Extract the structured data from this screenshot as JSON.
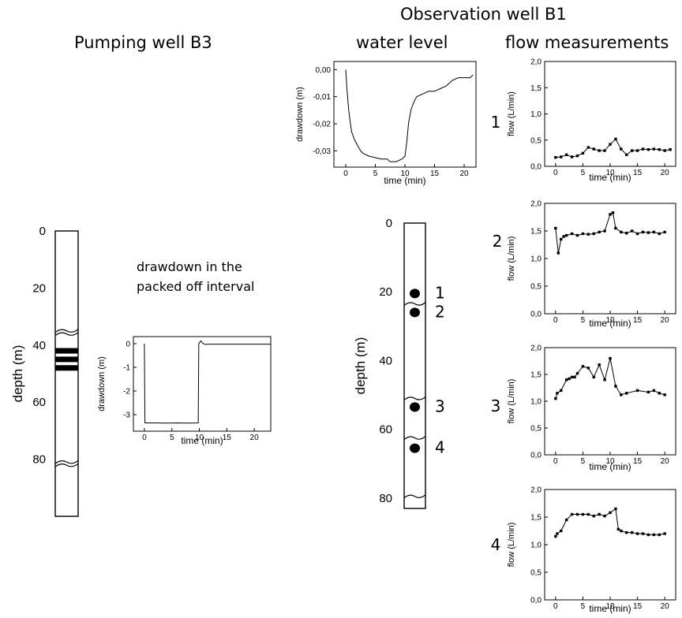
{
  "titles": {
    "pumping": "Pumping well B3",
    "observation": "Observation well B1",
    "water_level": "water level",
    "flow": "flow measurements",
    "packed_line1": "drawdown in the",
    "packed_line2": "packed off interval"
  },
  "wells": {
    "pumping": {
      "ylabel": "depth (m)",
      "depth_ticks": [
        "0",
        "20",
        "40",
        "60",
        "80"
      ],
      "depth_tick_values": [
        0,
        20,
        40,
        60,
        80
      ],
      "max_depth": 100,
      "fractures": [
        35,
        81
      ],
      "packers": [
        42,
        45,
        48
      ]
    },
    "observation": {
      "ylabel": "depth (m)",
      "depth_ticks": [
        "0",
        "20",
        "40",
        "60",
        "80"
      ],
      "depth_tick_values": [
        0,
        20,
        40,
        60,
        80
      ],
      "max_depth": 83,
      "fractures": [
        23.5,
        51,
        62.5,
        79.5
      ],
      "points": [
        {
          "label": "1",
          "depth": 20.5
        },
        {
          "label": "2",
          "depth": 26
        },
        {
          "label": "3",
          "depth": 53.5
        },
        {
          "label": "4",
          "depth": 65.5
        }
      ]
    }
  },
  "chart_data": [
    {
      "id": "obs_drawdown",
      "type": "line",
      "xlabel": "time (min)",
      "ylabel": "drawdown (m)",
      "xlim": [
        -2,
        22
      ],
      "ylim": [
        -0.036,
        0.003
      ],
      "xticks": [
        0,
        5,
        10,
        15,
        20
      ],
      "yticks": [
        0,
        -0.01,
        -0.02,
        -0.03
      ],
      "ytick_labels": [
        "0,00",
        "-0,01",
        "-0,02",
        "-0,03"
      ],
      "x": [
        0,
        0.2,
        0.5,
        0.8,
        1.0,
        1.5,
        2.0,
        2.5,
        3.0,
        4.0,
        5.0,
        6.0,
        7.0,
        7.5,
        8.0,
        8.5,
        9.0,
        9.5,
        10.0,
        10.3,
        10.6,
        11.0,
        11.5,
        12.0,
        13.0,
        14.0,
        15.0,
        16.0,
        17.0,
        18.0,
        19.0,
        20.0,
        21.0,
        21.5
      ],
      "y": [
        0,
        -0.007,
        -0.015,
        -0.02,
        -0.023,
        -0.026,
        -0.028,
        -0.03,
        -0.031,
        -0.032,
        -0.0325,
        -0.033,
        -0.033,
        -0.034,
        -0.034,
        -0.034,
        -0.0335,
        -0.033,
        -0.032,
        -0.027,
        -0.02,
        -0.015,
        -0.012,
        -0.01,
        -0.009,
        -0.008,
        -0.008,
        -0.007,
        -0.006,
        -0.004,
        -0.003,
        -0.003,
        -0.003,
        -0.002
      ]
    },
    {
      "id": "packed_drawdown",
      "type": "line",
      "xlabel": "time (min)",
      "ylabel": "drawdown (m)",
      "xlim": [
        -2,
        23
      ],
      "ylim": [
        -3.7,
        0.3
      ],
      "xticks": [
        0,
        5,
        10,
        15,
        20
      ],
      "yticks": [
        0,
        -1,
        -2,
        -3
      ],
      "ytick_labels": [
        "0",
        "-1",
        "-2",
        "-3"
      ],
      "x": [
        0,
        0.1,
        2,
        4,
        6,
        8,
        9.8,
        9.9,
        10.3,
        10.6,
        11.0,
        12,
        14,
        16,
        18,
        20,
        23
      ],
      "y": [
        0,
        -3.35,
        -3.35,
        -3.36,
        -3.35,
        -3.36,
        -3.35,
        0.0,
        0.12,
        0.02,
        -0.03,
        -0.02,
        -0.02,
        -0.02,
        -0.02,
        -0.02,
        -0.02
      ]
    },
    {
      "id": "flow_1",
      "panel_label": "1",
      "type": "line",
      "markers": true,
      "xlabel": "time (min)",
      "ylabel": "flow (L/min)",
      "xlim": [
        -2,
        22
      ],
      "ylim": [
        0,
        2
      ],
      "xticks": [
        0,
        5,
        10,
        15,
        20
      ],
      "yticks": [
        0,
        0.5,
        1,
        1.5,
        2
      ],
      "ytick_labels": [
        "0,0",
        "0,5",
        "1,0",
        "1,5",
        "2,0"
      ],
      "x": [
        0,
        1,
        2,
        3,
        4,
        5,
        6,
        7,
        8,
        9,
        10,
        11,
        12,
        13,
        14,
        15,
        16,
        17,
        18,
        19,
        20,
        21
      ],
      "y": [
        0.17,
        0.18,
        0.22,
        0.18,
        0.2,
        0.25,
        0.36,
        0.33,
        0.3,
        0.3,
        0.42,
        0.52,
        0.33,
        0.22,
        0.3,
        0.3,
        0.33,
        0.32,
        0.33,
        0.32,
        0.3,
        0.32
      ]
    },
    {
      "id": "flow_2",
      "panel_label": "2",
      "type": "line",
      "markers": true,
      "xlabel": "time (min)",
      "ylabel": "flow (L/min)",
      "xlim": [
        -2,
        22
      ],
      "ylim": [
        0,
        2
      ],
      "xticks": [
        0,
        5,
        10,
        15,
        20
      ],
      "yticks": [
        0,
        0.5,
        1,
        1.5,
        2
      ],
      "ytick_labels": [
        "0,0",
        "0,5",
        "1,0",
        "1,5",
        "2,0"
      ],
      "x": [
        0,
        0.5,
        1,
        1.5,
        2,
        3,
        4,
        5,
        6,
        7,
        8,
        9,
        10,
        10.5,
        11,
        12,
        13,
        14,
        15,
        16,
        17,
        18,
        19,
        20
      ],
      "y": [
        1.55,
        1.1,
        1.35,
        1.4,
        1.42,
        1.45,
        1.42,
        1.45,
        1.44,
        1.45,
        1.48,
        1.5,
        1.8,
        1.83,
        1.55,
        1.48,
        1.46,
        1.5,
        1.45,
        1.48,
        1.47,
        1.48,
        1.45,
        1.48
      ]
    },
    {
      "id": "flow_3",
      "panel_label": "3",
      "type": "line",
      "markers": true,
      "xlabel": "time (min)",
      "ylabel": "flow (L/min)",
      "xlim": [
        -2,
        22
      ],
      "ylim": [
        0,
        2
      ],
      "xticks": [
        0,
        5,
        10,
        15,
        20
      ],
      "yticks": [
        0,
        0.5,
        1,
        1.5,
        2
      ],
      "ytick_labels": [
        "0,0",
        "0,5",
        "1,0",
        "1,5",
        "2,0"
      ],
      "x": [
        0,
        0.3,
        1,
        2,
        2.5,
        3,
        3.5,
        4,
        5,
        6,
        7,
        8,
        9,
        10,
        11,
        12,
        13,
        15,
        17,
        18,
        19,
        20
      ],
      "y": [
        1.05,
        1.15,
        1.2,
        1.4,
        1.42,
        1.45,
        1.45,
        1.52,
        1.65,
        1.62,
        1.45,
        1.68,
        1.4,
        1.8,
        1.28,
        1.12,
        1.15,
        1.2,
        1.17,
        1.2,
        1.15,
        1.12
      ]
    },
    {
      "id": "flow_4",
      "panel_label": "4",
      "type": "line",
      "markers": true,
      "xlabel": "time (min)",
      "ylabel": "flow (L/min)",
      "xlim": [
        -2,
        22
      ],
      "ylim": [
        0,
        2
      ],
      "xticks": [
        0,
        5,
        10,
        15,
        20
      ],
      "yticks": [
        0,
        0.5,
        1,
        1.5,
        2
      ],
      "ytick_labels": [
        "0,0",
        "0,5",
        "1,0",
        "1,5",
        "2,0"
      ],
      "x": [
        0,
        0.3,
        1,
        2,
        3,
        4,
        5,
        6,
        7,
        8,
        9,
        10,
        11,
        11.5,
        12,
        13,
        14,
        15,
        16,
        17,
        18,
        19,
        20
      ],
      "y": [
        1.15,
        1.2,
        1.25,
        1.45,
        1.55,
        1.55,
        1.55,
        1.55,
        1.52,
        1.55,
        1.52,
        1.58,
        1.65,
        1.28,
        1.25,
        1.22,
        1.22,
        1.2,
        1.2,
        1.18,
        1.18,
        1.18,
        1.2
      ]
    }
  ]
}
